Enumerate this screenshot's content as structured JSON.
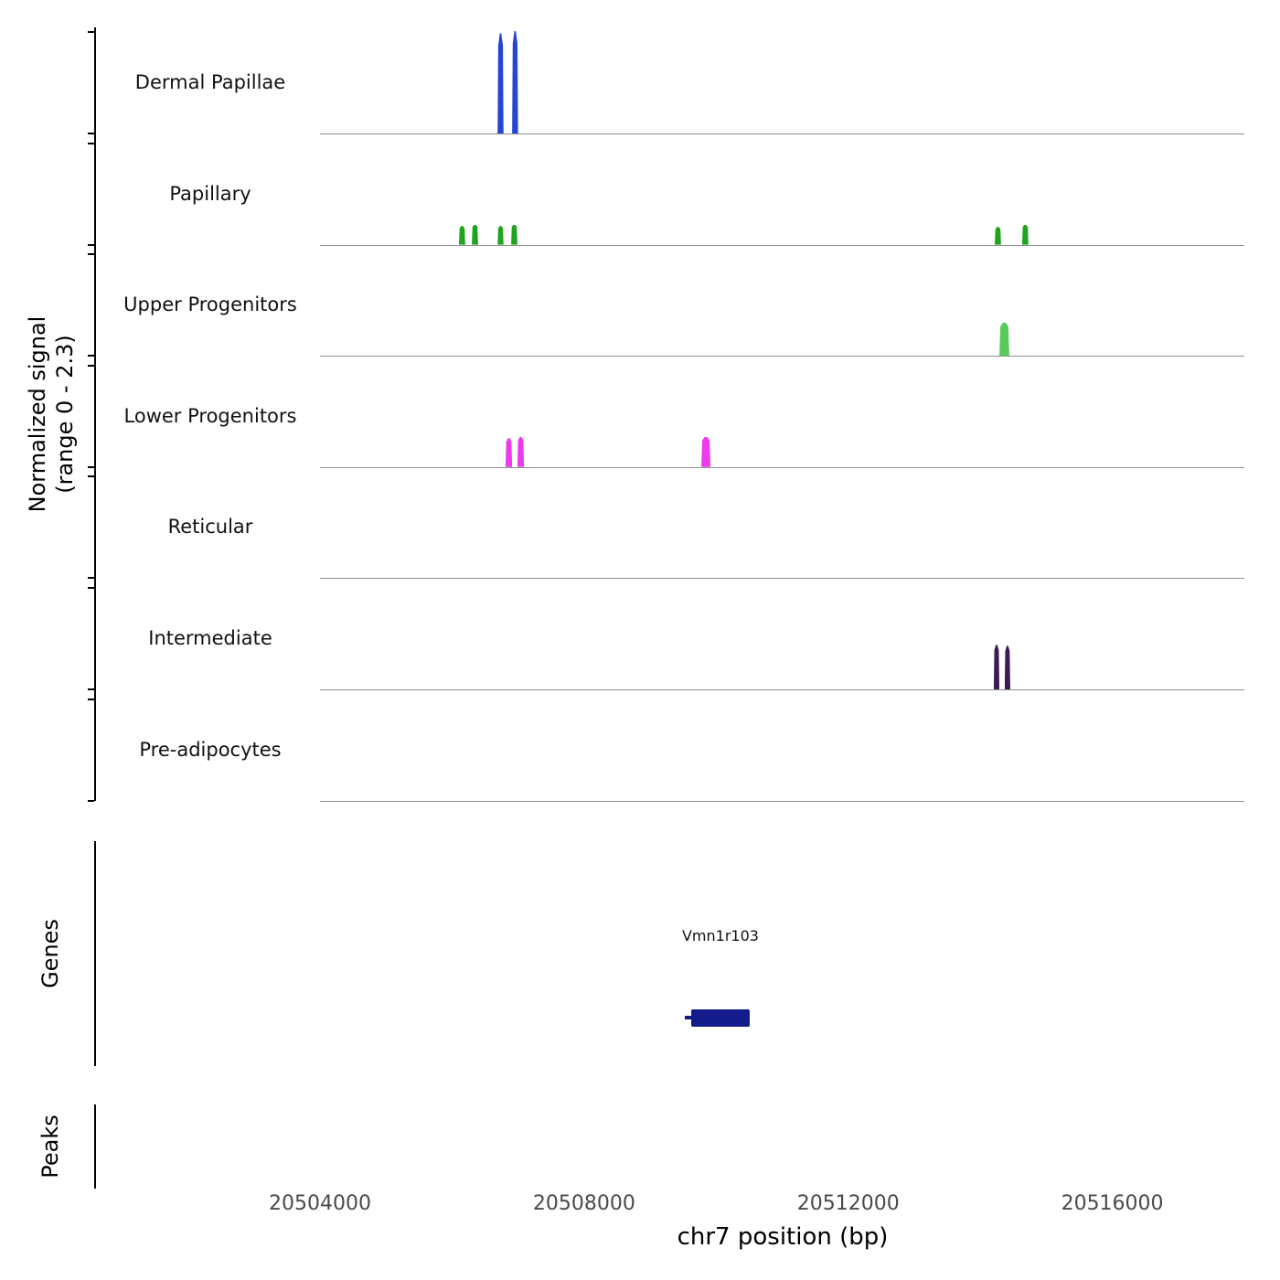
{
  "figure": {
    "y_axis_label_line1": "Normalized signal",
    "y_axis_label_line2": "(range 0 - 2.3)",
    "genes_label": "Genes",
    "peaks_label": "Peaks",
    "x_axis_label": "chr7 position (bp)"
  },
  "chart_data": {
    "type": "bar",
    "subtype": "genome-signal-tracks",
    "chromosome": "chr7",
    "x_range": [
      20504000,
      20518000
    ],
    "x_ticks": [
      20504000,
      20508000,
      20512000,
      20516000
    ],
    "signal_range": [
      0,
      2.3
    ],
    "tracks": [
      {
        "label": "Dermal Papillae",
        "color": "#2646d0",
        "peaks": [
          {
            "start": 20506690,
            "end": 20506780,
            "value": 2.25
          },
          {
            "start": 20506910,
            "end": 20507000,
            "value": 2.3
          }
        ]
      },
      {
        "label": "Papillary",
        "color": "#1fa41f",
        "peaks": [
          {
            "start": 20506105,
            "end": 20506200,
            "value": 0.42
          },
          {
            "start": 20506300,
            "end": 20506395,
            "value": 0.45
          },
          {
            "start": 20506690,
            "end": 20506780,
            "value": 0.42
          },
          {
            "start": 20506895,
            "end": 20506990,
            "value": 0.45
          },
          {
            "start": 20514220,
            "end": 20514315,
            "value": 0.4
          },
          {
            "start": 20514635,
            "end": 20514730,
            "value": 0.45
          }
        ]
      },
      {
        "label": "Upper Progenitors",
        "color": "#57cb57",
        "peaks": [
          {
            "start": 20514290,
            "end": 20514440,
            "value": 0.75
          }
        ]
      },
      {
        "label": "Lower Progenitors",
        "color": "#ec3bec",
        "peaks": [
          {
            "start": 20506810,
            "end": 20506910,
            "value": 0.65
          },
          {
            "start": 20506990,
            "end": 20507090,
            "value": 0.68
          },
          {
            "start": 20509775,
            "end": 20509915,
            "value": 0.68
          }
        ]
      },
      {
        "label": "Reticular",
        "peaks": []
      },
      {
        "label": "Intermediate",
        "color": "#3a1c52",
        "peaks": [
          {
            "start": 20514205,
            "end": 20514290,
            "value": 1.0
          },
          {
            "start": 20514370,
            "end": 20514455,
            "value": 0.98
          }
        ]
      },
      {
        "label": "Pre-adipocytes",
        "peaks": []
      }
    ],
    "genes": [
      {
        "name": "Vmn1r103",
        "start": 20509620,
        "end": 20510510,
        "utr_start": 20509530,
        "color": "#141c8c"
      }
    ],
    "peaks_track": []
  }
}
